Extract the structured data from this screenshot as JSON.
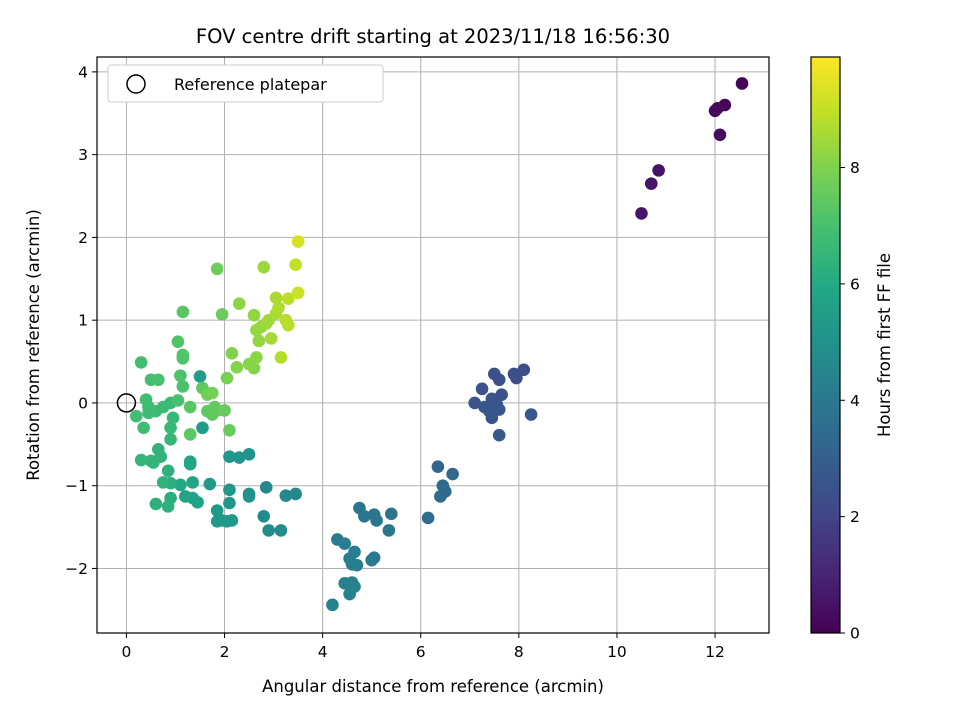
{
  "chart_data": {
    "type": "scatter",
    "title": "FOV centre drift starting at 2023/11/18 16:56:30",
    "xlabel": "Angular distance from reference (arcmin)",
    "ylabel": "Rotation from reference (arcmin)",
    "xlim": [
      -0.6,
      13.1
    ],
    "ylim": [
      -2.78,
      4.18
    ],
    "xticks": [
      0,
      2,
      4,
      6,
      8,
      10,
      12
    ],
    "yticks": [
      -2,
      -1,
      0,
      1,
      2,
      3,
      4
    ],
    "grid": true,
    "legend": {
      "position": "top-left",
      "entries": [
        "Reference platepar"
      ]
    },
    "reference_point": {
      "x": 0,
      "y": 0,
      "marker": "open-circle"
    },
    "colorbar": {
      "label": "Hours from first FF file",
      "colormap": "viridis",
      "range": [
        0,
        9.9
      ],
      "ticks": [
        0,
        2,
        4,
        6,
        8
      ]
    },
    "points": [
      {
        "x": 12.55,
        "y": 3.86,
        "c": 0.1
      },
      {
        "x": 12.2,
        "y": 3.6,
        "c": 0.15
      },
      {
        "x": 12.0,
        "y": 3.53,
        "c": 0.2
      },
      {
        "x": 12.05,
        "y": 3.56,
        "c": 0.25
      },
      {
        "x": 12.1,
        "y": 3.24,
        "c": 0.3
      },
      {
        "x": 10.85,
        "y": 2.81,
        "c": 0.5
      },
      {
        "x": 10.7,
        "y": 2.65,
        "c": 0.55
      },
      {
        "x": 10.5,
        "y": 2.29,
        "c": 0.6
      },
      {
        "x": 8.1,
        "y": 0.4,
        "c": 2.3
      },
      {
        "x": 7.9,
        "y": 0.35,
        "c": 2.35
      },
      {
        "x": 7.95,
        "y": 0.3,
        "c": 2.4
      },
      {
        "x": 7.5,
        "y": 0.35,
        "c": 2.4
      },
      {
        "x": 7.6,
        "y": 0.28,
        "c": 2.45
      },
      {
        "x": 7.25,
        "y": 0.17,
        "c": 2.5
      },
      {
        "x": 7.65,
        "y": 0.1,
        "c": 2.5
      },
      {
        "x": 7.45,
        "y": 0.05,
        "c": 2.55
      },
      {
        "x": 7.1,
        "y": 0.0,
        "c": 2.55
      },
      {
        "x": 7.3,
        "y": -0.05,
        "c": 2.6
      },
      {
        "x": 7.55,
        "y": -0.02,
        "c": 2.6
      },
      {
        "x": 7.6,
        "y": -0.08,
        "c": 2.6
      },
      {
        "x": 7.4,
        "y": -0.1,
        "c": 2.65
      },
      {
        "x": 7.45,
        "y": -0.18,
        "c": 2.65
      },
      {
        "x": 8.25,
        "y": -0.14,
        "c": 2.7
      },
      {
        "x": 7.6,
        "y": -0.39,
        "c": 2.75
      },
      {
        "x": 6.35,
        "y": -0.77,
        "c": 3.3
      },
      {
        "x": 6.65,
        "y": -0.86,
        "c": 3.35
      },
      {
        "x": 6.45,
        "y": -1.0,
        "c": 3.4
      },
      {
        "x": 6.5,
        "y": -1.07,
        "c": 3.4
      },
      {
        "x": 6.4,
        "y": -1.13,
        "c": 3.45
      },
      {
        "x": 6.15,
        "y": -1.39,
        "c": 3.5
      },
      {
        "x": 5.4,
        "y": -1.34,
        "c": 3.8
      },
      {
        "x": 5.05,
        "y": -1.35,
        "c": 3.85
      },
      {
        "x": 5.1,
        "y": -1.42,
        "c": 3.85
      },
      {
        "x": 4.85,
        "y": -1.37,
        "c": 3.9
      },
      {
        "x": 4.75,
        "y": -1.27,
        "c": 3.9
      },
      {
        "x": 5.35,
        "y": -1.54,
        "c": 3.95
      },
      {
        "x": 5.05,
        "y": -1.87,
        "c": 4.0
      },
      {
        "x": 5.0,
        "y": -1.9,
        "c": 4.0
      },
      {
        "x": 4.3,
        "y": -1.65,
        "c": 4.1
      },
      {
        "x": 4.45,
        "y": -1.7,
        "c": 4.15
      },
      {
        "x": 4.65,
        "y": -1.8,
        "c": 4.15
      },
      {
        "x": 4.55,
        "y": -1.88,
        "c": 4.2
      },
      {
        "x": 4.6,
        "y": -1.95,
        "c": 4.2
      },
      {
        "x": 4.7,
        "y": -1.96,
        "c": 4.25
      },
      {
        "x": 4.6,
        "y": -2.17,
        "c": 4.3
      },
      {
        "x": 4.45,
        "y": -2.18,
        "c": 4.3
      },
      {
        "x": 4.65,
        "y": -2.22,
        "c": 4.35
      },
      {
        "x": 4.55,
        "y": -2.31,
        "c": 4.4
      },
      {
        "x": 4.2,
        "y": -2.44,
        "c": 4.4
      },
      {
        "x": 3.45,
        "y": -1.1,
        "c": 4.6
      },
      {
        "x": 3.25,
        "y": -1.12,
        "c": 4.6
      },
      {
        "x": 2.85,
        "y": -1.02,
        "c": 4.65
      },
      {
        "x": 2.8,
        "y": -1.37,
        "c": 4.7
      },
      {
        "x": 3.15,
        "y": -1.54,
        "c": 4.7
      },
      {
        "x": 2.9,
        "y": -1.54,
        "c": 4.75
      },
      {
        "x": 2.5,
        "y": -1.1,
        "c": 5.0
      },
      {
        "x": 2.5,
        "y": -1.13,
        "c": 5.0
      },
      {
        "x": 2.5,
        "y": -0.62,
        "c": 5.05
      },
      {
        "x": 2.3,
        "y": -0.66,
        "c": 5.1
      },
      {
        "x": 2.1,
        "y": -0.65,
        "c": 5.15
      },
      {
        "x": 2.1,
        "y": -1.05,
        "c": 5.2
      },
      {
        "x": 2.1,
        "y": -1.21,
        "c": 5.2
      },
      {
        "x": 2.15,
        "y": -1.42,
        "c": 5.25
      },
      {
        "x": 2.05,
        "y": -1.43,
        "c": 5.3
      },
      {
        "x": 1.95,
        "y": -1.42,
        "c": 5.3
      },
      {
        "x": 1.85,
        "y": -1.43,
        "c": 5.35
      },
      {
        "x": 1.85,
        "y": -1.3,
        "c": 5.4
      },
      {
        "x": 1.7,
        "y": -0.98,
        "c": 5.4
      },
      {
        "x": 1.55,
        "y": -0.3,
        "c": 5.45
      },
      {
        "x": 1.5,
        "y": 0.32,
        "c": 5.5
      },
      {
        "x": 1.45,
        "y": -1.2,
        "c": 5.7
      },
      {
        "x": 1.35,
        "y": -1.15,
        "c": 5.7
      },
      {
        "x": 1.2,
        "y": -1.13,
        "c": 5.75
      },
      {
        "x": 1.35,
        "y": -0.96,
        "c": 5.8
      },
      {
        "x": 1.3,
        "y": -0.74,
        "c": 5.85
      },
      {
        "x": 1.3,
        "y": -0.71,
        "c": 5.85
      },
      {
        "x": 1.1,
        "y": -0.99,
        "c": 5.9
      },
      {
        "x": 0.9,
        "y": -1.15,
        "c": 6.2
      },
      {
        "x": 0.9,
        "y": -0.97,
        "c": 6.2
      },
      {
        "x": 0.85,
        "y": -1.25,
        "c": 6.25
      },
      {
        "x": 0.6,
        "y": -1.22,
        "c": 6.3
      },
      {
        "x": 0.85,
        "y": -0.82,
        "c": 6.3
      },
      {
        "x": 0.75,
        "y": -0.96,
        "c": 6.35
      },
      {
        "x": 0.7,
        "y": -0.65,
        "c": 6.4
      },
      {
        "x": 0.65,
        "y": -0.56,
        "c": 6.4
      },
      {
        "x": 0.55,
        "y": -0.72,
        "c": 6.45
      },
      {
        "x": 0.5,
        "y": -0.7,
        "c": 6.45
      },
      {
        "x": 0.3,
        "y": -0.69,
        "c": 6.5
      },
      {
        "x": 0.9,
        "y": -0.44,
        "c": 6.55
      },
      {
        "x": 0.9,
        "y": -0.3,
        "c": 6.6
      },
      {
        "x": 0.95,
        "y": -0.18,
        "c": 6.6
      },
      {
        "x": 0.9,
        "y": 0.0,
        "c": 6.65
      },
      {
        "x": 0.75,
        "y": -0.05,
        "c": 6.7
      },
      {
        "x": 0.6,
        "y": -0.1,
        "c": 6.7
      },
      {
        "x": 0.45,
        "y": -0.05,
        "c": 6.75
      },
      {
        "x": 0.45,
        "y": -0.12,
        "c": 6.75
      },
      {
        "x": 0.35,
        "y": -0.3,
        "c": 6.8
      },
      {
        "x": 0.2,
        "y": -0.16,
        "c": 6.8
      },
      {
        "x": 0.4,
        "y": 0.04,
        "c": 6.85
      },
      {
        "x": 0.5,
        "y": 0.28,
        "c": 6.9
      },
      {
        "x": 0.3,
        "y": 0.49,
        "c": 6.9
      },
      {
        "x": 0.65,
        "y": 0.28,
        "c": 7.0
      },
      {
        "x": 1.05,
        "y": 0.03,
        "c": 7.0
      },
      {
        "x": 1.15,
        "y": 0.2,
        "c": 7.05
      },
      {
        "x": 1.1,
        "y": 0.33,
        "c": 7.1
      },
      {
        "x": 1.05,
        "y": 0.74,
        "c": 7.15
      },
      {
        "x": 1.15,
        "y": 0.54,
        "c": 7.15
      },
      {
        "x": 1.15,
        "y": 0.58,
        "c": 7.2
      },
      {
        "x": 1.15,
        "y": 1.1,
        "c": 7.3
      },
      {
        "x": 1.3,
        "y": -0.05,
        "c": 7.3
      },
      {
        "x": 1.3,
        "y": -0.38,
        "c": 7.35
      },
      {
        "x": 1.55,
        "y": 0.18,
        "c": 7.4
      },
      {
        "x": 1.65,
        "y": -0.1,
        "c": 7.4
      },
      {
        "x": 1.75,
        "y": -0.14,
        "c": 7.45
      },
      {
        "x": 1.8,
        "y": -0.05,
        "c": 7.5
      },
      {
        "x": 1.85,
        "y": -0.09,
        "c": 7.5
      },
      {
        "x": 2.0,
        "y": -0.09,
        "c": 7.55
      },
      {
        "x": 2.1,
        "y": -0.33,
        "c": 7.6
      },
      {
        "x": 1.95,
        "y": 1.07,
        "c": 7.6
      },
      {
        "x": 1.85,
        "y": 1.62,
        "c": 7.7
      },
      {
        "x": 1.65,
        "y": 0.1,
        "c": 7.75
      },
      {
        "x": 1.75,
        "y": 0.12,
        "c": 7.8
      },
      {
        "x": 2.05,
        "y": 0.3,
        "c": 7.85
      },
      {
        "x": 2.15,
        "y": 0.6,
        "c": 8.0
      },
      {
        "x": 2.25,
        "y": 0.43,
        "c": 8.05
      },
      {
        "x": 2.5,
        "y": 0.47,
        "c": 8.1
      },
      {
        "x": 2.6,
        "y": 0.42,
        "c": 8.1
      },
      {
        "x": 2.65,
        "y": 0.55,
        "c": 8.15
      },
      {
        "x": 2.3,
        "y": 1.2,
        "c": 8.2
      },
      {
        "x": 2.6,
        "y": 1.06,
        "c": 8.25
      },
      {
        "x": 2.65,
        "y": 0.88,
        "c": 8.3
      },
      {
        "x": 2.7,
        "y": 0.75,
        "c": 8.3
      },
      {
        "x": 2.75,
        "y": 0.92,
        "c": 8.35
      },
      {
        "x": 2.8,
        "y": 1.64,
        "c": 8.4
      },
      {
        "x": 2.85,
        "y": 0.96,
        "c": 8.45
      },
      {
        "x": 2.9,
        "y": 1.0,
        "c": 8.5
      },
      {
        "x": 2.95,
        "y": 0.78,
        "c": 8.55
      },
      {
        "x": 3.05,
        "y": 1.08,
        "c": 8.6
      },
      {
        "x": 3.05,
        "y": 1.27,
        "c": 8.65
      },
      {
        "x": 3.1,
        "y": 1.15,
        "c": 8.7
      },
      {
        "x": 3.15,
        "y": 0.55,
        "c": 8.75
      },
      {
        "x": 3.25,
        "y": 1.0,
        "c": 8.8
      },
      {
        "x": 3.3,
        "y": 0.94,
        "c": 8.85
      },
      {
        "x": 3.3,
        "y": 1.26,
        "c": 8.9
      },
      {
        "x": 3.45,
        "y": 1.67,
        "c": 9.0
      },
      {
        "x": 3.5,
        "y": 1.33,
        "c": 9.1
      },
      {
        "x": 3.5,
        "y": 1.95,
        "c": 9.3
      }
    ]
  }
}
